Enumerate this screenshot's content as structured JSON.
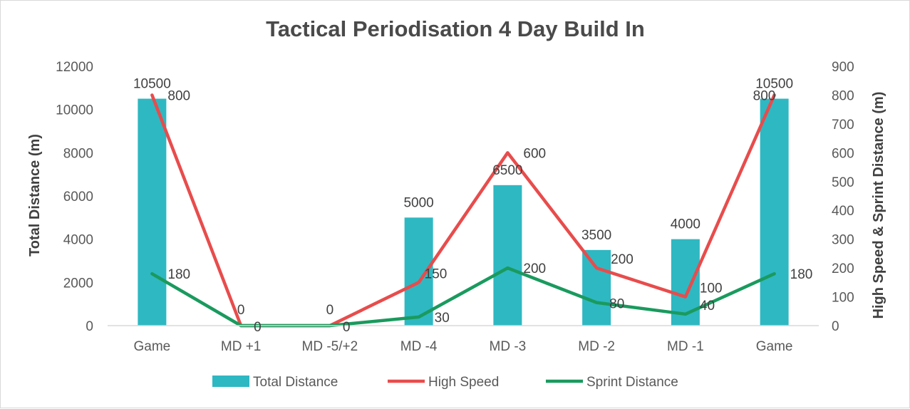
{
  "chart_data": {
    "type": "bar+line",
    "title": "Tactical Periodisation 4 Day Build In",
    "categories": [
      "Game",
      "MD +1",
      "MD -5/+2",
      "MD -4",
      "MD -3",
      "MD -2",
      "MD -1",
      "Game"
    ],
    "y_left": {
      "label": "Total Distance (m)",
      "range": [
        0,
        12000
      ],
      "ticks": [
        "0",
        "2000",
        "4000",
        "6000",
        "8000",
        "10000",
        "12000"
      ]
    },
    "y_right": {
      "label": "High Speed & Sprint Distance (m)",
      "range": [
        0,
        900
      ],
      "ticks": [
        "0",
        "100",
        "200",
        "300",
        "400",
        "500",
        "600",
        "700",
        "800",
        "900"
      ]
    },
    "series": [
      {
        "name": "Total Distance",
        "kind": "bar",
        "axis": "left",
        "color": "#2eb8c2",
        "values": [
          10500,
          0,
          0,
          5000,
          6500,
          3500,
          4000,
          10500
        ],
        "labels": [
          "10500",
          "",
          "",
          "5000",
          "6500",
          "3500",
          "4000",
          "10500"
        ]
      },
      {
        "name": "High Speed",
        "kind": "line",
        "axis": "right",
        "color": "#e84c4c",
        "values": [
          800,
          0,
          0,
          150,
          600,
          200,
          100,
          800
        ],
        "labels": [
          "800",
          "0",
          "0",
          "150",
          "600",
          "200",
          "100",
          "800"
        ]
      },
      {
        "name": "Sprint Distance",
        "kind": "line",
        "axis": "right",
        "color": "#1a9a5e",
        "values": [
          180,
          0,
          0,
          30,
          200,
          80,
          40,
          180
        ],
        "labels": [
          "180",
          "0",
          "0",
          "30",
          "200",
          "80",
          "40",
          "180"
        ]
      }
    ],
    "legend": "bottom",
    "grid": false
  }
}
